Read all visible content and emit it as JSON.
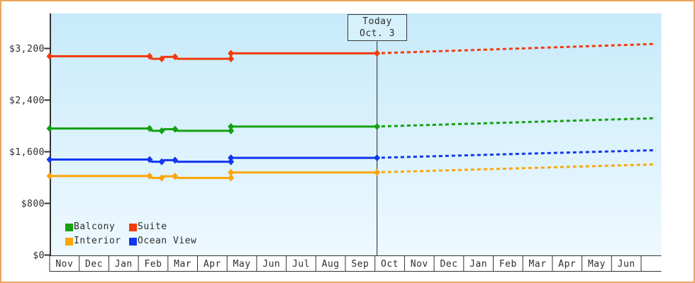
{
  "window": {
    "frame_color": "#eba55c",
    "background": "#ffffff"
  },
  "today_box": {
    "line1": "Today",
    "line2": "Oct. 3"
  },
  "legend": {
    "items": [
      {
        "label": "Balcony",
        "color": "#13a113"
      },
      {
        "label": "Suite",
        "color": "#f33a0d"
      },
      {
        "label": "Interior",
        "color": "#fca60a"
      },
      {
        "label": "Ocean View",
        "color": "#1237f0"
      }
    ]
  },
  "colors": {
    "plot_bg_top": "#c7eafa",
    "plot_bg_bottom": "#eef9ff",
    "axis": "#333333",
    "text": "#2e2e2e",
    "today_line": "#444444",
    "today_box_fill": "#d6f0fc",
    "today_box_border": "#3a3a3a"
  },
  "chart_data": {
    "type": "line",
    "title": "",
    "xlabel": "",
    "ylabel": "",
    "unit": "USD price per cabin category",
    "grid": false,
    "legend_position": "bottom-left inside plot",
    "x_axis": {
      "months": [
        "Nov",
        "Dec",
        "Jan",
        "Feb",
        "Mar",
        "Apr",
        "May",
        "Jun",
        "Jul",
        "Aug",
        "Sep",
        "Oct",
        "Nov",
        "Dec",
        "Jan",
        "Feb",
        "Mar",
        "Apr",
        "May",
        "Jun"
      ],
      "month_index_range": [
        0,
        20.7
      ]
    },
    "y_axis": {
      "range": [
        0,
        3500
      ],
      "ticks": [
        {
          "value": 0,
          "label": "$0"
        },
        {
          "value": 800,
          "label": "$800"
        },
        {
          "value": 1600,
          "label": "$1,600"
        },
        {
          "value": 2400,
          "label": "$2,400"
        },
        {
          "value": 3200,
          "label": "$3,200"
        }
      ]
    },
    "today": {
      "label": "Today",
      "date": "Oct. 3",
      "month_index": 11.07
    },
    "series": [
      {
        "id": "suite",
        "name": "Suite",
        "color": "#f33a0d",
        "solid": [
          [
            0,
            3080
          ],
          [
            3.38,
            3080
          ],
          [
            3.46,
            3040
          ],
          [
            3.79,
            3040
          ],
          [
            3.87,
            3070
          ],
          [
            4.24,
            3070
          ],
          [
            4.32,
            3040
          ],
          [
            6.13,
            3040
          ],
          [
            6.13,
            3125
          ],
          [
            11.07,
            3125
          ]
        ],
        "markers": [
          [
            0,
            3080
          ],
          [
            3.38,
            3080
          ],
          [
            3.79,
            3040
          ],
          [
            4.24,
            3070
          ],
          [
            6.13,
            3040
          ],
          [
            6.13,
            3125
          ],
          [
            11.07,
            3125
          ]
        ],
        "projection": [
          [
            11.22,
            3128
          ],
          [
            20.5,
            3270
          ]
        ]
      },
      {
        "id": "balcony",
        "name": "Balcony",
        "color": "#13a113",
        "solid": [
          [
            0,
            1960
          ],
          [
            3.38,
            1960
          ],
          [
            3.46,
            1925
          ],
          [
            3.79,
            1925
          ],
          [
            3.87,
            1950
          ],
          [
            4.24,
            1950
          ],
          [
            4.32,
            1925
          ],
          [
            6.13,
            1925
          ],
          [
            6.13,
            1990
          ],
          [
            11.07,
            1990
          ]
        ],
        "markers": [
          [
            0,
            1960
          ],
          [
            3.38,
            1960
          ],
          [
            3.79,
            1925
          ],
          [
            4.24,
            1950
          ],
          [
            6.13,
            1925
          ],
          [
            6.13,
            1990
          ],
          [
            11.07,
            1990
          ]
        ],
        "projection": [
          [
            11.22,
            1993
          ],
          [
            20.5,
            2120
          ]
        ]
      },
      {
        "id": "ocean-view",
        "name": "Ocean View",
        "color": "#1237f0",
        "solid": [
          [
            0,
            1480
          ],
          [
            3.38,
            1480
          ],
          [
            3.46,
            1445
          ],
          [
            3.79,
            1445
          ],
          [
            3.87,
            1470
          ],
          [
            4.24,
            1470
          ],
          [
            4.32,
            1445
          ],
          [
            6.13,
            1445
          ],
          [
            6.13,
            1505
          ],
          [
            11.07,
            1505
          ]
        ],
        "markers": [
          [
            0,
            1480
          ],
          [
            3.38,
            1480
          ],
          [
            3.79,
            1445
          ],
          [
            4.24,
            1470
          ],
          [
            6.13,
            1445
          ],
          [
            6.13,
            1505
          ],
          [
            11.07,
            1505
          ]
        ],
        "projection": [
          [
            11.22,
            1508
          ],
          [
            20.5,
            1625
          ]
        ]
      },
      {
        "id": "interior",
        "name": "Interior",
        "color": "#fca60a",
        "solid": [
          [
            0,
            1225
          ],
          [
            3.38,
            1225
          ],
          [
            3.46,
            1195
          ],
          [
            3.79,
            1195
          ],
          [
            3.87,
            1220
          ],
          [
            4.24,
            1220
          ],
          [
            4.32,
            1195
          ],
          [
            6.13,
            1195
          ],
          [
            6.13,
            1280
          ],
          [
            11.07,
            1280
          ]
        ],
        "markers": [
          [
            0,
            1225
          ],
          [
            3.38,
            1225
          ],
          [
            3.79,
            1195
          ],
          [
            4.24,
            1220
          ],
          [
            6.13,
            1195
          ],
          [
            6.13,
            1280
          ],
          [
            11.07,
            1280
          ]
        ],
        "projection": [
          [
            11.22,
            1283
          ],
          [
            20.5,
            1405
          ]
        ]
      }
    ]
  }
}
